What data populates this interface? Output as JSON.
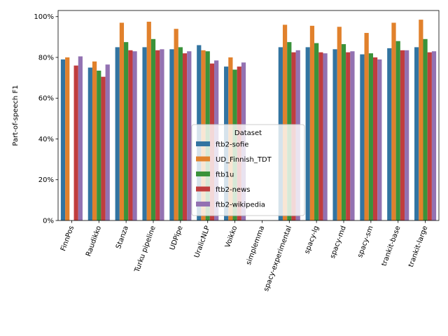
{
  "chart_data": {
    "type": "bar",
    "title": "",
    "xlabel": "",
    "ylabel": "Part-of-speech F1",
    "ylim": [
      0,
      1.03
    ],
    "y_ticks": [
      0,
      0.2,
      0.4,
      0.6,
      0.8,
      1.0
    ],
    "y_tick_labels": [
      "0%",
      "20%",
      "40%",
      "60%",
      "80%",
      "100%"
    ],
    "grid": false,
    "categories": [
      "FinnPos",
      "Raudikko",
      "Stanza",
      "Turku pipeline",
      "UDPipe",
      "UralicNLP",
      "Voikko",
      "simplemma",
      "spacy-experimental",
      "spacy-lg",
      "spacy-md",
      "spacy-sm",
      "trankit-base",
      "trankit-large"
    ],
    "legend": {
      "title": "Dataset",
      "placement": "lower-center"
    },
    "series": [
      {
        "name": "ftb2-sofie",
        "color": "#3274a1",
        "values": [
          0.79,
          0.75,
          0.85,
          0.85,
          0.84,
          0.86,
          0.755,
          null,
          0.85,
          0.85,
          0.84,
          0.815,
          0.845,
          0.85
        ]
      },
      {
        "name": "UD_Finnish_TDT",
        "color": "#e1812c",
        "values": [
          0.8,
          0.78,
          0.97,
          0.975,
          0.94,
          0.835,
          0.8,
          null,
          0.96,
          0.955,
          0.95,
          0.92,
          0.97,
          0.985
        ]
      },
      {
        "name": "ftb1u",
        "color": "#3a923a",
        "values": [
          null,
          0.735,
          0.875,
          0.89,
          0.85,
          0.83,
          0.74,
          null,
          0.875,
          0.87,
          0.865,
          0.82,
          0.88,
          0.89
        ]
      },
      {
        "name": "ftb2-news",
        "color": "#c03d3e",
        "values": [
          0.76,
          0.705,
          0.835,
          0.835,
          0.82,
          0.77,
          0.755,
          null,
          0.825,
          0.825,
          0.825,
          0.8,
          0.835,
          0.825
        ]
      },
      {
        "name": "ftb2-wikipedia",
        "color": "#9372b2",
        "values": [
          0.805,
          0.765,
          0.83,
          0.84,
          0.83,
          0.785,
          0.775,
          null,
          0.835,
          0.82,
          0.83,
          0.79,
          0.835,
          0.83
        ]
      }
    ]
  }
}
